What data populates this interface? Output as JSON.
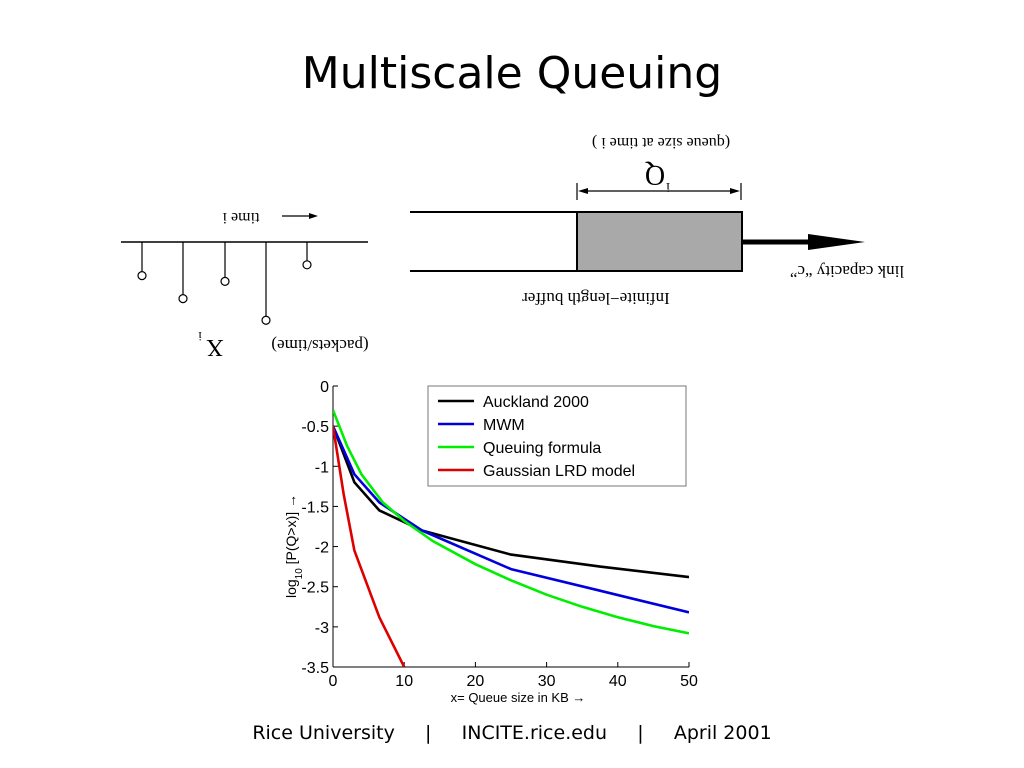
{
  "slide": {
    "title": "Multiscale Queuing",
    "footer": {
      "parts": [
        "Rice University",
        "INCITE.rice.edu",
        "April 2001"
      ],
      "separator": "|"
    }
  },
  "diagram": {
    "time_label": "time  i",
    "arrivals_label": "(packets/time)",
    "arrivals_symbol": "X",
    "arrivals_superscript": "i",
    "queue_symbol": "Q",
    "queue_superscript": "i",
    "queue_size_label": "(queue size at time  i )",
    "buffer_label": "Infinite−length buffer",
    "link_label": "link capacity “c”",
    "buffer_fill_color": "#a9a9a9",
    "arrival_sample_levels": [
      0.3,
      0.62,
      0.38,
      0.92,
      0.15
    ]
  },
  "chart_data": {
    "type": "line",
    "xlabel": "x= Queue size in KB →",
    "ylabel": "log10 [P(Q>x)] →",
    "xlim": [
      0,
      50
    ],
    "ylim": [
      -3.5,
      0
    ],
    "x_ticks": [
      0,
      10,
      20,
      30,
      40,
      50
    ],
    "y_ticks": [
      0,
      -0.5,
      -1,
      -1.5,
      -2,
      -2.5,
      -3,
      -3.5
    ],
    "x_tick_labels": [
      "0",
      "10",
      "20",
      "30",
      "40",
      "50"
    ],
    "y_tick_labels": [
      "0",
      "-0.5",
      "-1",
      "-1.5",
      "-2",
      "-2.5",
      "-3",
      "-3.5"
    ],
    "grid": false,
    "legend_position": "top-right",
    "series": [
      {
        "name": "Auckland 2000",
        "color": "#000000",
        "x": [
          0,
          1.5,
          3,
          6.5,
          12.5,
          25,
          37.5,
          50
        ],
        "y": [
          -0.5,
          -0.85,
          -1.2,
          -1.55,
          -1.8,
          -2.1,
          -2.25,
          -2.38
        ]
      },
      {
        "name": "MWM",
        "color": "#0000dd",
        "x": [
          0,
          1.5,
          3,
          6.5,
          12.5,
          25,
          37.5,
          50
        ],
        "y": [
          -0.5,
          -0.8,
          -1.1,
          -1.45,
          -1.8,
          -2.28,
          -2.55,
          -2.82
        ]
      },
      {
        "name": "Queuing formula",
        "color": "#00ee00",
        "x": [
          0,
          2,
          4,
          7,
          10,
          14,
          20,
          25,
          30,
          35,
          40,
          45,
          50
        ],
        "y": [
          -0.3,
          -0.75,
          -1.1,
          -1.45,
          -1.68,
          -1.93,
          -2.22,
          -2.42,
          -2.6,
          -2.75,
          -2.88,
          -2.99,
          -3.08
        ]
      },
      {
        "name": "Gaussian LRD model",
        "color": "#dd0000",
        "x": [
          0,
          1.5,
          3,
          6.5,
          10
        ],
        "y": [
          -0.5,
          -1.35,
          -2.05,
          -2.88,
          -3.5
        ]
      }
    ]
  }
}
